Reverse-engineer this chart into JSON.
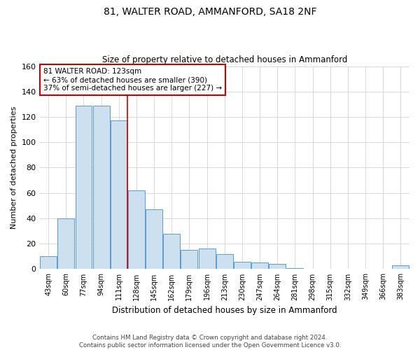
{
  "title1": "81, WALTER ROAD, AMMANFORD, SA18 2NF",
  "title2": "Size of property relative to detached houses in Ammanford",
  "xlabel": "Distribution of detached houses by size in Ammanford",
  "ylabel": "Number of detached properties",
  "categories": [
    "43sqm",
    "60sqm",
    "77sqm",
    "94sqm",
    "111sqm",
    "128sqm",
    "145sqm",
    "162sqm",
    "179sqm",
    "196sqm",
    "213sqm",
    "230sqm",
    "247sqm",
    "264sqm",
    "281sqm",
    "298sqm",
    "315sqm",
    "332sqm",
    "349sqm",
    "366sqm",
    "383sqm"
  ],
  "values": [
    10,
    40,
    129,
    129,
    117,
    62,
    47,
    28,
    15,
    16,
    12,
    6,
    5,
    4,
    1,
    0,
    0,
    0,
    0,
    0,
    3
  ],
  "bar_color": "#cce0f0",
  "bar_edge_color": "#5b9bd5",
  "highlight_line_color": "#cc0000",
  "annotation_text": "81 WALTER ROAD: 123sqm\n← 63% of detached houses are smaller (390)\n37% of semi-detached houses are larger (227) →",
  "annotation_box_color": "#ffffff",
  "annotation_box_edge": "#cc0000",
  "ylim": [
    0,
    160
  ],
  "yticks": [
    0,
    20,
    40,
    60,
    80,
    100,
    120,
    140,
    160
  ],
  "background_color": "#ffffff",
  "grid_color": "#d0d0d8",
  "footer": "Contains HM Land Registry data © Crown copyright and database right 2024.\nContains public sector information licensed under the Open Government Licence v3.0."
}
